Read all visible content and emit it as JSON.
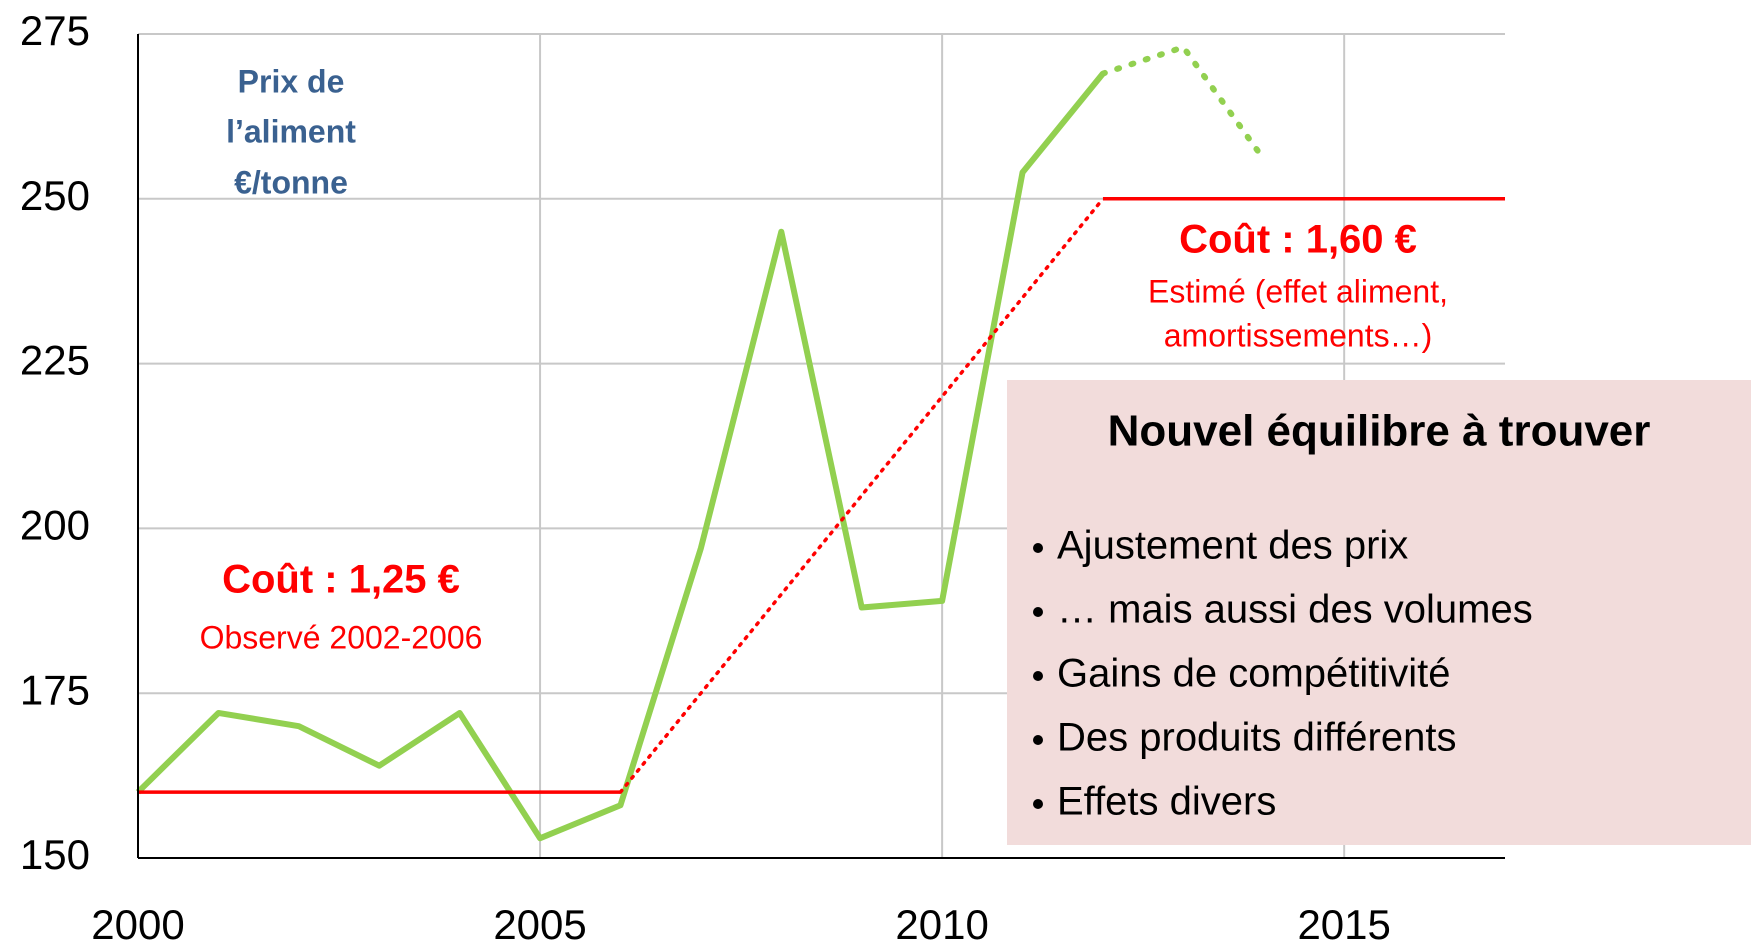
{
  "chart_data": {
    "type": "line",
    "xlim": [
      2000,
      2017
    ],
    "xticks": [
      2000,
      2005,
      2010,
      2015
    ],
    "ylim": [
      150,
      275
    ],
    "yticks": [
      150,
      175,
      200,
      225,
      250,
      275
    ],
    "grid": true,
    "series": [
      {
        "color": "#92d050",
        "style": "solid",
        "x": [
          2000,
          2001,
          2002,
          2003,
          2004,
          2005,
          2006,
          2007,
          2008,
          2009,
          2010,
          2011,
          2012
        ],
        "values": [
          160,
          172,
          170,
          164,
          172,
          153,
          158,
          197,
          245,
          188,
          189,
          254,
          269
        ]
      },
      {
        "color": "#92d050",
        "style": "dotted",
        "x": [
          2012,
          2013,
          2014
        ],
        "values": [
          269,
          273,
          256
        ]
      },
      {
        "color": "#ff0000",
        "style": "solid",
        "x": [
          2000,
          2006
        ],
        "values": [
          160,
          160
        ]
      },
      {
        "color": "#ff0000",
        "style": "dotted",
        "x": [
          2006,
          2012
        ],
        "values": [
          160,
          250
        ]
      },
      {
        "color": "#ff0000",
        "style": "solid",
        "x": [
          2012,
          2017
        ],
        "values": [
          250,
          250
        ]
      }
    ],
    "annotations": [
      "Prix de",
      "l’aliment",
      "€/tonne",
      "Coût : 1,25 €",
      "Observé 2002-2006",
      "Coût : 1,60 €",
      "Estimé (effet aliment,",
      "amortissements…)"
    ],
    "box": {
      "title": "Nouvel équilibre à trouver",
      "items": [
        "Ajustement des prix",
        "… mais aussi des volumes",
        "Gains de compétitivité",
        "Des produits différents",
        "Effets divers"
      ]
    }
  }
}
